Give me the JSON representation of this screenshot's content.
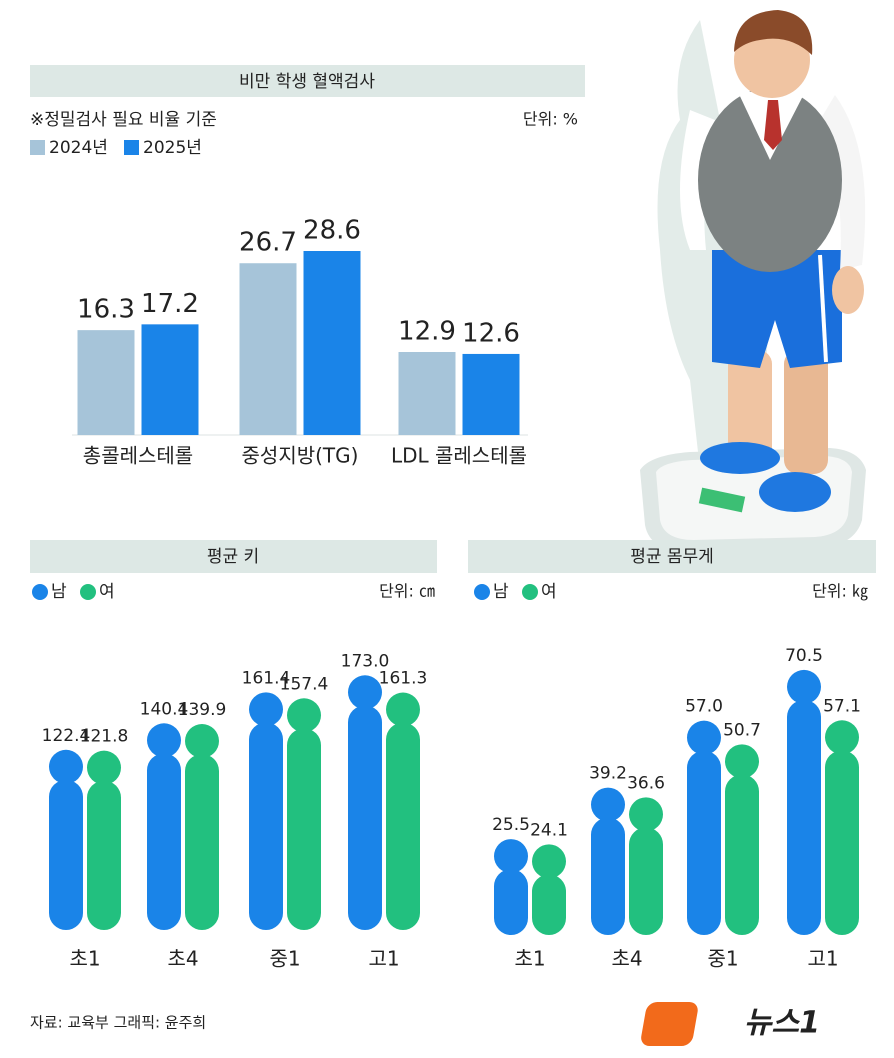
{
  "chart_data": [
    {
      "type": "bar",
      "title": "비만 학생 혈액검사",
      "subtitle": "※정밀검사 필요 비율 기준",
      "unit": "단위: %",
      "categories": [
        "총콜레스테롤",
        "중성지방(TG)",
        "LDL 콜레스테롤"
      ],
      "series": [
        {
          "name": "2024년",
          "color": "#a6c4d9",
          "values": [
            16.3,
            26.7,
            12.9
          ]
        },
        {
          "name": "2025년",
          "color": "#1a84e8",
          "values": [
            17.2,
            28.6,
            12.6
          ]
        }
      ],
      "ylim": [
        0,
        30
      ]
    },
    {
      "type": "capsule",
      "title": "평균 키",
      "unit": "단위: ㎝",
      "categories": [
        "초1",
        "초4",
        "중1",
        "고1"
      ],
      "series": [
        {
          "name": "남",
          "color": "#1a84e8",
          "values": [
            122.4,
            140.4,
            161.4,
            173.0
          ],
          "value_labels": [
            "122.4",
            "140.4",
            "161.4",
            "173.0"
          ]
        },
        {
          "name": "여",
          "color": "#22c07f",
          "values": [
            121.8,
            139.9,
            157.4,
            161.3
          ],
          "value_labels": [
            "121.8",
            "139.9",
            "157.4",
            "161.3"
          ]
        }
      ],
      "ylim": [
        0,
        180
      ]
    },
    {
      "type": "capsule",
      "title": "평균 몸무게",
      "unit": "단위: ㎏",
      "categories": [
        "초1",
        "초4",
        "중1",
        "고1"
      ],
      "series": [
        {
          "name": "남",
          "color": "#1a84e8",
          "values": [
            25.5,
            39.2,
            57.0,
            70.5
          ],
          "value_labels": [
            "25.5",
            "39.2",
            "57.0",
            "70.5"
          ]
        },
        {
          "name": "여",
          "color": "#22c07f",
          "values": [
            24.1,
            36.6,
            50.7,
            57.1
          ],
          "value_labels": [
            "24.1",
            "36.6",
            "50.7",
            "57.1"
          ]
        }
      ],
      "ylim": [
        0,
        75
      ]
    }
  ],
  "footer": {
    "source": "자료: 교육부 그래픽: 윤주희",
    "logo": "뉴스1"
  }
}
